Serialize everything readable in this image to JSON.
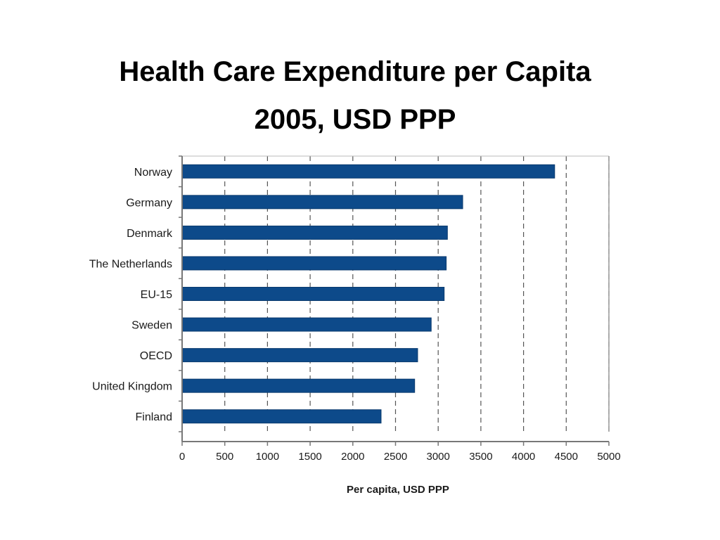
{
  "chart_data": {
    "type": "bar",
    "orientation": "horizontal",
    "title": "Health Care Expenditure per Capita",
    "subtitle": "2005, USD PPP",
    "xlabel": "Per capita, USD PPP",
    "ylabel": "",
    "categories": [
      "Norway",
      "Germany",
      "Denmark",
      "The Netherlands",
      "EU-15",
      "Sweden",
      "OECD",
      "United Kingdom",
      "Finland"
    ],
    "values": [
      4364,
      3287,
      3108,
      3094,
      3070,
      2918,
      2759,
      2724,
      2331
    ],
    "xlim": [
      0,
      5000
    ],
    "xticks": [
      "0",
      "500",
      "1000",
      "1500",
      "2000",
      "2500",
      "3000",
      "3500",
      "4000",
      "4500",
      "5000"
    ],
    "xtick_values": [
      0,
      500,
      1000,
      1500,
      2000,
      2500,
      3000,
      3500,
      4000,
      4500,
      5000
    ],
    "grid": true,
    "legend": "none",
    "colors": {
      "bar": "#0d4a8a",
      "bar_edge": "#0a3a6e",
      "grid": "#555555",
      "axis": "#777777"
    }
  }
}
